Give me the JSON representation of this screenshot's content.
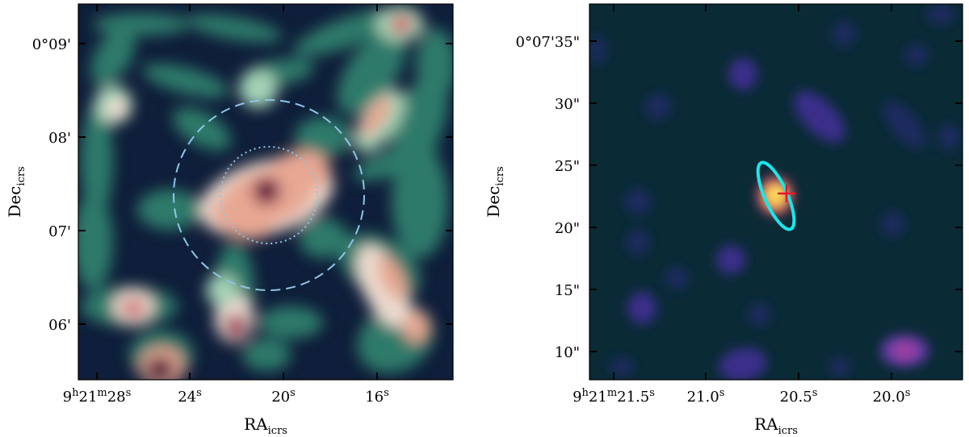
{
  "panels": [
    {
      "id": "left",
      "xlabel": "RA",
      "xlabel_sub": "icrs",
      "ylabel": "Dec",
      "ylabel_sub": "icrs",
      "x_ticks": [
        {
          "label": "9h21m28s",
          "parts": [
            [
              "9",
              "n"
            ],
            [
              "h",
              "s"
            ],
            [
              "21",
              "n"
            ],
            [
              "m",
              "s"
            ],
            [
              "28",
              "n"
            ],
            [
              "s",
              "s"
            ]
          ]
        },
        {
          "label": "24s",
          "parts": [
            [
              "24",
              "n"
            ],
            [
              "s",
              "s"
            ]
          ]
        },
        {
          "label": "20s",
          "parts": [
            [
              "20",
              "n"
            ],
            [
              "s",
              "s"
            ]
          ]
        },
        {
          "label": "16s",
          "parts": [
            [
              "16",
              "n"
            ],
            [
              "s",
              "s"
            ]
          ]
        }
      ],
      "y_ticks": [
        "0°09'",
        "08'",
        "07'",
        "06'"
      ],
      "colormap": [
        "#0c1936",
        "#12334a",
        "#1c5656",
        "#2d7a6a",
        "#5aa68a",
        "#a4d2b6",
        "#ecdcd0",
        "#e7a793",
        "#cf6a6e",
        "#a23e5c",
        "#5c1a45",
        "#2c0a2a"
      ],
      "background": "#0f1e3a",
      "circle_dashed_color": "#8ec5e6",
      "circle_dotted_color": "#8ec5e6"
    },
    {
      "id": "right",
      "xlabel": "RA",
      "xlabel_sub": "icrs",
      "ylabel": "Dec",
      "ylabel_sub": "icrs",
      "x_ticks": [
        {
          "label": "9h21m21.5s",
          "parts": [
            [
              "9",
              "n"
            ],
            [
              "h",
              "s"
            ],
            [
              "21",
              "n"
            ],
            [
              "m",
              "s"
            ],
            [
              "21.5",
              "n"
            ],
            [
              "s",
              "s"
            ]
          ]
        },
        {
          "label": "21.0s",
          "parts": [
            [
              "21.0",
              "n"
            ],
            [
              "s",
              "s"
            ]
          ]
        },
        {
          "label": "20.5s",
          "parts": [
            [
              "20.5",
              "n"
            ],
            [
              "s",
              "s"
            ]
          ]
        },
        {
          "label": "20.0s",
          "parts": [
            [
              "20.0",
              "n"
            ],
            [
              "s",
              "s"
            ]
          ]
        }
      ],
      "y_ticks": [
        "0°07'35\"",
        "30\"",
        "25\"",
        "20\"",
        "15\"",
        "10\""
      ],
      "colormap": [
        "#0a2a36",
        "#1d2b5e",
        "#3b2f8a",
        "#5e3aa6",
        "#9a3fa0",
        "#d8476e",
        "#f47a3d",
        "#fbc23b",
        "#fdeb6b"
      ],
      "background": "#0a2a36",
      "ellipse_color": "#19e6ea",
      "cross_color": "#e8162a"
    }
  ]
}
